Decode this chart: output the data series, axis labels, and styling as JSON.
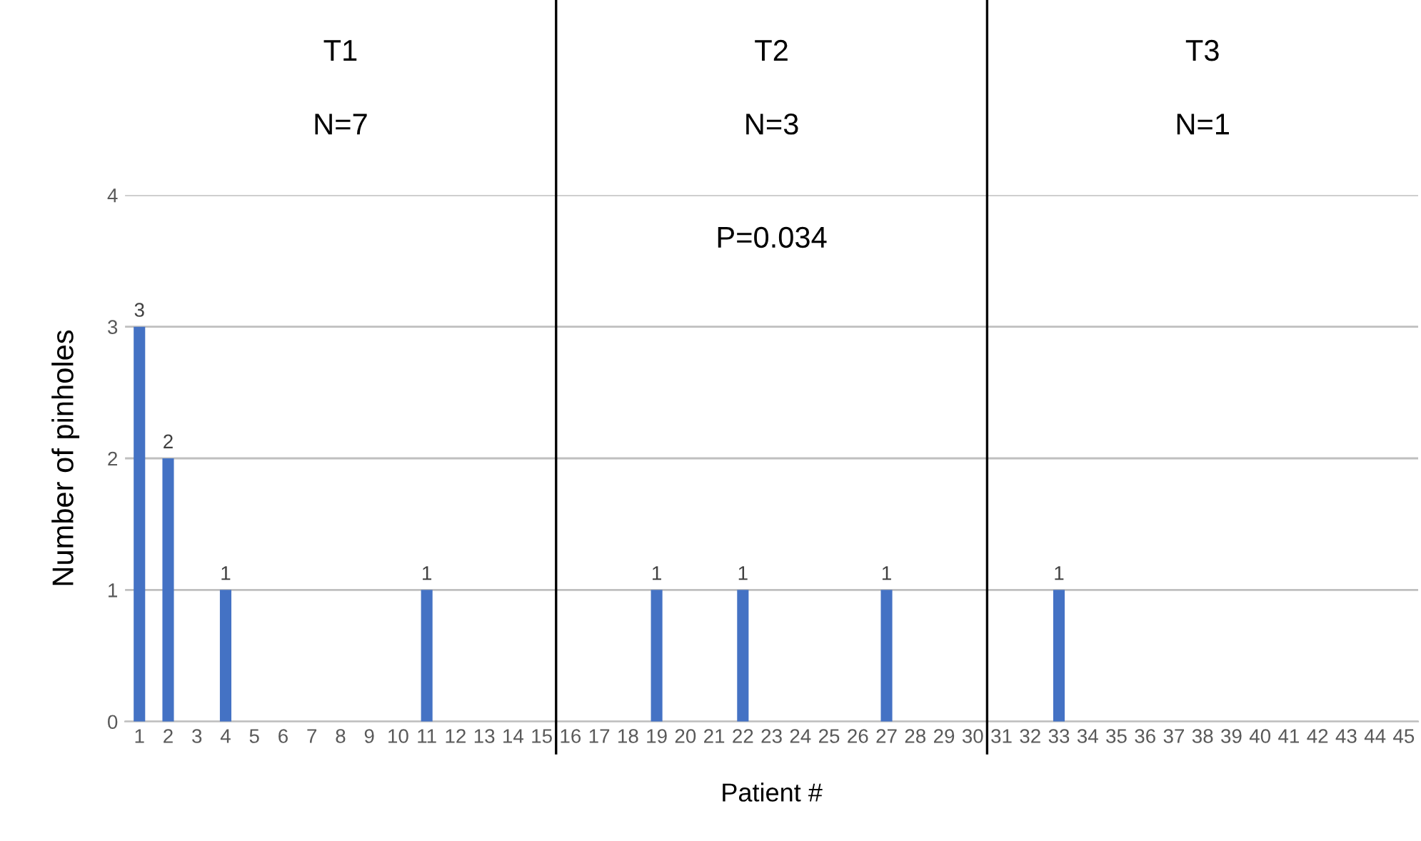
{
  "chart_data": {
    "type": "bar",
    "xlabel": "Patient #",
    "ylabel": "Number of pinholes",
    "x": [
      1,
      2,
      3,
      4,
      5,
      6,
      7,
      8,
      9,
      10,
      11,
      12,
      13,
      14,
      15,
      16,
      17,
      18,
      19,
      20,
      21,
      22,
      23,
      24,
      25,
      26,
      27,
      28,
      29,
      30,
      31,
      32,
      33,
      34,
      35,
      36,
      37,
      38,
      39,
      40,
      41,
      42,
      43,
      44,
      45
    ],
    "values": [
      3,
      2,
      0,
      1,
      0,
      0,
      0,
      0,
      0,
      0,
      1,
      0,
      0,
      0,
      0,
      0,
      0,
      0,
      1,
      0,
      0,
      1,
      0,
      0,
      0,
      0,
      1,
      0,
      0,
      0,
      0,
      0,
      1,
      0,
      0,
      0,
      0,
      0,
      0,
      0,
      0,
      0,
      0,
      0,
      0
    ],
    "value_labels": [
      "3",
      "2",
      null,
      "1",
      null,
      null,
      null,
      null,
      null,
      null,
      "1",
      null,
      null,
      null,
      null,
      null,
      null,
      null,
      "1",
      null,
      null,
      "1",
      null,
      null,
      null,
      null,
      "1",
      null,
      null,
      null,
      null,
      null,
      "1",
      null,
      null,
      null,
      null,
      null,
      null,
      null,
      null,
      null,
      null,
      null,
      null
    ],
    "color": "#4472c4",
    "xlim": [
      0.5,
      45.5
    ],
    "xticks": [
      1,
      2,
      3,
      4,
      5,
      6,
      7,
      8,
      9,
      10,
      11,
      12,
      13,
      14,
      15,
      16,
      17,
      18,
      19,
      20,
      21,
      22,
      23,
      24,
      25,
      26,
      27,
      28,
      29,
      30,
      31,
      32,
      33,
      34,
      35,
      36,
      37,
      38,
      39,
      40,
      41,
      42,
      43,
      44,
      45
    ],
    "ylim": [
      0,
      4
    ],
    "yticks": [
      0,
      1,
      2,
      3,
      4
    ],
    "grid": "y",
    "ref_lines": [
      {
        "axis": "x",
        "value": 15.5,
        "color": "#000000"
      },
      {
        "axis": "x",
        "value": 30.5,
        "color": "#000000"
      }
    ],
    "annotations": [
      "T1",
      "N=7",
      "T2",
      "N=3",
      "T3",
      "N=1",
      "P=0.034"
    ]
  }
}
